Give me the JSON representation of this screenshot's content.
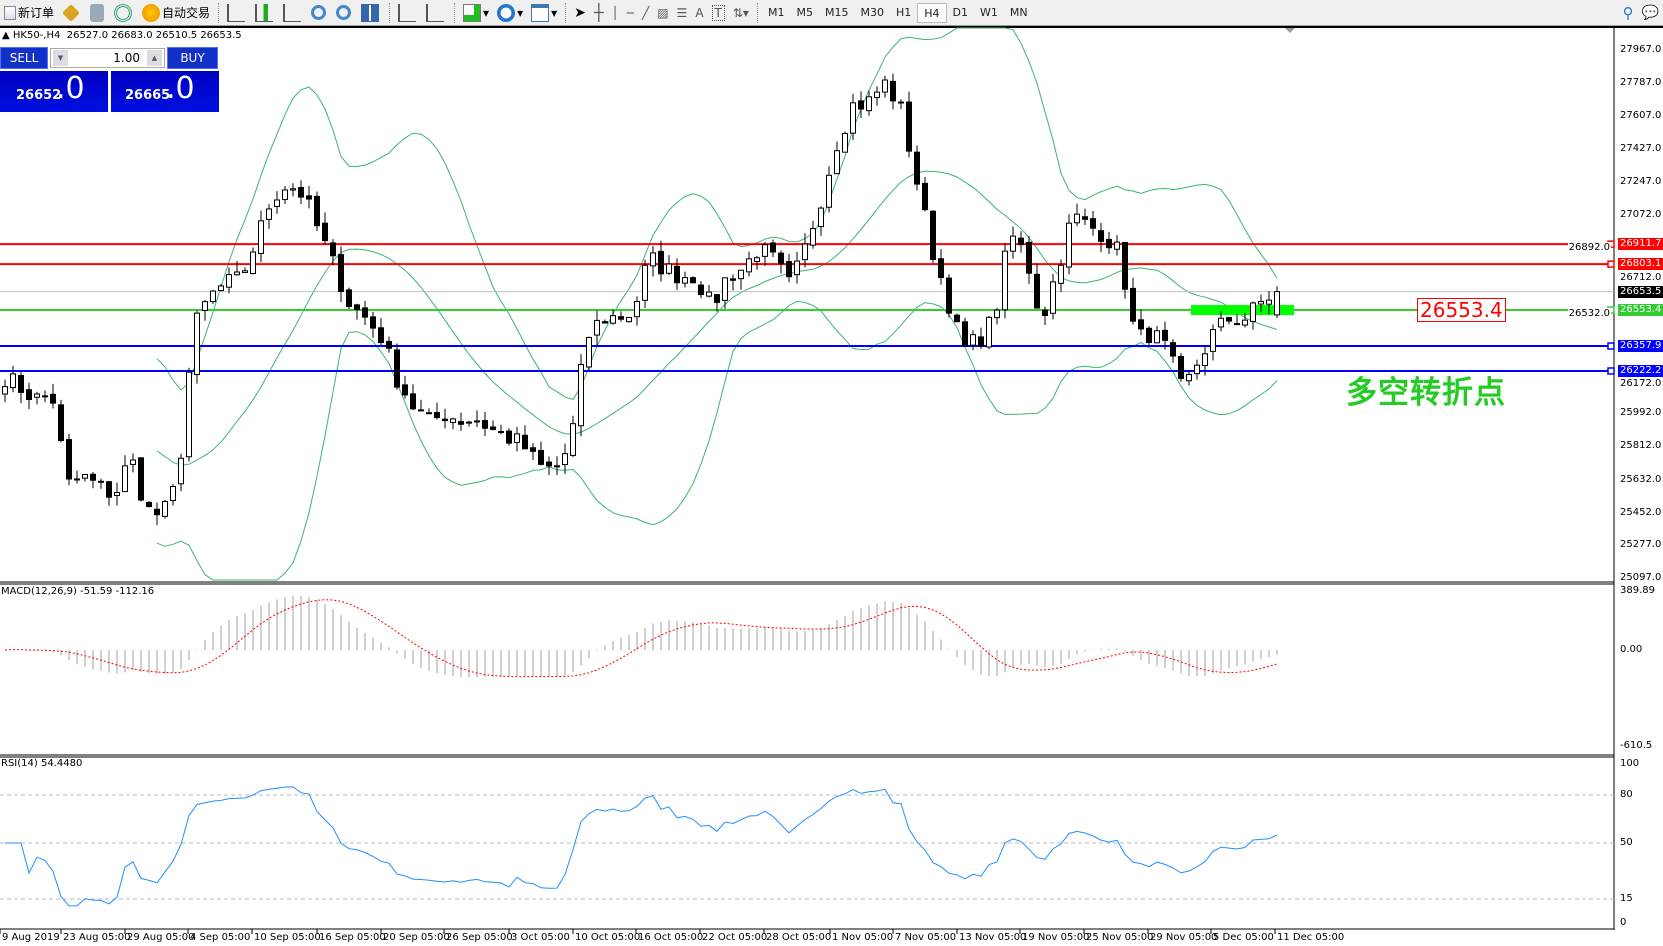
{
  "toolbar": {
    "new_order": "新订单",
    "auto_trading": "自动交易",
    "timeframes": [
      "M1",
      "M5",
      "M15",
      "M30",
      "H1",
      "H4",
      "D1",
      "W1",
      "MN"
    ],
    "active_timeframe": "H4",
    "icons": [
      "new-order-icon",
      "market-watch-icon",
      "data-window-icon",
      "navigator-icon",
      "auto-trading-icon",
      "bar-chart-icon",
      "candlestick-icon",
      "line-chart-icon",
      "zoom-in-icon",
      "zoom-out-icon",
      "tile-windows-icon",
      "auto-scroll-icon",
      "chart-shift-icon",
      "indicators-icon",
      "periods-icon",
      "templates-icon",
      "cursor-icon",
      "crosshair-icon",
      "vertical-line-icon",
      "horizontal-line-icon",
      "trendline-icon",
      "equidistant-channel-icon",
      "fibonacci-icon",
      "text-icon",
      "text-label-icon",
      "arrows-icon",
      "search-icon",
      "chat-icon"
    ]
  },
  "header": {
    "symbol": "HK50-,H4",
    "ohlc": "26527.0 26683.0 26510.5 26653.5"
  },
  "trade_panel": {
    "sell": "SELL",
    "buy": "BUY",
    "lots": "1.00",
    "bid_main": "26652",
    "bid_frac": ".0",
    "ask_main": "26665",
    "ask_frac": ".0"
  },
  "price_axis": [
    "27967.0",
    "27787.0",
    "27607.0",
    "27427.0",
    "27247.0",
    "27072.0",
    "26892.0",
    "26712.0",
    "26532.0",
    "26172.0",
    "25992.0",
    "25812.0",
    "25632.0",
    "25452.0",
    "25277.0",
    "25097.0"
  ],
  "levels": [
    {
      "price": 26911.7,
      "label": "26911.7",
      "color": "#ff0000"
    },
    {
      "price": 26803.1,
      "label": "26803.1",
      "color": "#ff0000"
    },
    {
      "price": 26553.4,
      "label": "26553.4",
      "color": "#33cc33"
    },
    {
      "price": 26357.9,
      "label": "26357.9",
      "color": "#0000ff"
    },
    {
      "price": 26222.2,
      "label": "26222.2",
      "color": "#0000ff"
    }
  ],
  "current_price": {
    "price": 26653.5,
    "label": "26653.5"
  },
  "annotations": {
    "price_box": "26553.4",
    "turning_point": "多空转折点"
  },
  "macd": {
    "label": "MACD(12,26,9) -51.59 -112.16",
    "axis": [
      "389.89",
      "0.00",
      "-610.5"
    ]
  },
  "rsi": {
    "label": "RSI(14) 54.4480",
    "axis": [
      "100",
      "80",
      "50",
      "15",
      "0"
    ]
  },
  "time_axis": [
    "9 Aug 2019",
    "23 Aug 05:00",
    "29 Aug 05:00",
    "4 Sep 05:00",
    "10 Sep 05:00",
    "16 Sep 05:00",
    "20 Sep 05:00",
    "26 Sep 05:00",
    "3 Oct 05:00",
    "10 Oct 05:00",
    "16 Oct 05:00",
    "22 Oct 05:00",
    "28 Oct 05:00",
    "1 Nov 05:00",
    "7 Nov 05:00",
    "13 Nov 05:00",
    "19 Nov 05:00",
    "25 Nov 05:00",
    "29 Nov 05:00",
    "5 Dec 05:00",
    "11 Dec 05:00"
  ],
  "colors": {
    "bands": "#3cb371",
    "macd_hist": "#c0c0c0",
    "macd_signal": "#ff0000",
    "rsi": "#1e90ff",
    "green_zone": "#00ff00"
  },
  "chart_data": {
    "type": "candlestick",
    "symbol": "HK50-",
    "timeframe": "H4",
    "ylim": [
      25097,
      27967
    ],
    "indicators": [
      "Bollinger Bands",
      "MACD(12,26,9)",
      "RSI(14)"
    ],
    "last_candle": {
      "open": 26527.0,
      "high": 26683.0,
      "low": 26510.5,
      "close": 26653.5
    },
    "approx_closes": [
      26192,
      26130,
      26071,
      26094,
      25604,
      25644,
      25593,
      25547,
      25760,
      25472,
      25432,
      25616,
      26451,
      26624,
      26693,
      26722,
      26930,
      27166,
      27241,
      27181,
      26979,
      26785,
      26578,
      26509,
      26405,
      26175,
      26031,
      25944,
      25990,
      25956,
      25962,
      25904,
      25864,
      25817,
      25702,
      25685,
      25817,
      26394,
      26509,
      26515,
      26538,
      26838,
      26780,
      26740,
      26740,
      26567,
      26740,
      26780,
      26890,
      26820,
      26682,
      26896,
      27172,
      27472,
      27667,
      27684,
      27788,
      27662,
      27281,
      26896,
      26624,
      26336,
      26394,
      26509,
      26970,
      26855,
      26492,
      26774,
      27068,
      27010,
      26970,
      26855,
      26394,
      26434,
      26336,
      26106,
      26279,
      26434,
      26509,
      26509,
      26595,
      26653.5
    ]
  }
}
